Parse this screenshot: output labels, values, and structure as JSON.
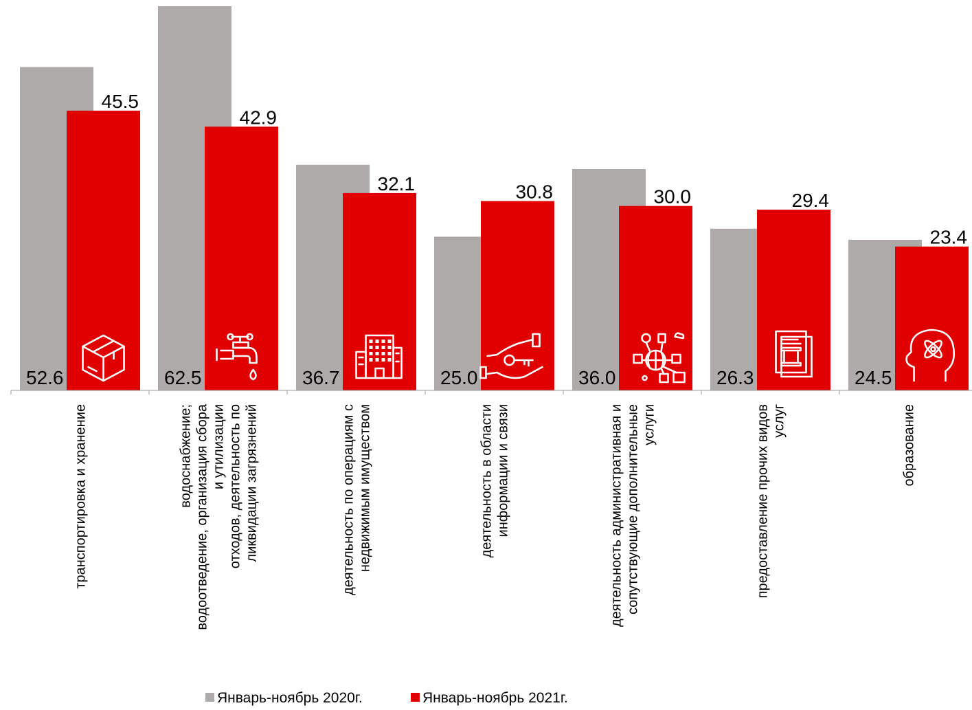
{
  "chart_data": {
    "type": "bar",
    "categories": [
      "транспортировка и хранение",
      "водоснабжение; водоотведение, организация сбора и утилизации отходов, деятельность по ликвидации загрязнений",
      "деятельность по операциям с недвижимым имуществом",
      "деятельность в области информации и связи",
      "деятельность административная и сопутствующие дополнительные услуги",
      "предоставление прочих видов услуг",
      "образование"
    ],
    "category_lines": [
      [
        "транспортировка и хранение"
      ],
      [
        "водоснабжение;",
        "водоотведение, организация сбора",
        "и утилизации",
        "отходов, деятельность по",
        "ликвидации загрязнений"
      ],
      [
        "деятельность по операциям с",
        "недвижимым имуществом"
      ],
      [
        "деятельность в области",
        "информации и связи"
      ],
      [
        "деятельность административная и",
        "сопутствующие дополнительные",
        "услуги"
      ],
      [
        "предоставление прочих видов",
        "услуг"
      ],
      [
        "образование"
      ]
    ],
    "series": [
      {
        "name": "Январь-ноябрь 2020г.",
        "color": "#aeaaaa",
        "values": [
          52.6,
          62.5,
          36.7,
          25.0,
          36.0,
          26.3,
          24.5
        ],
        "labels": [
          "52.6",
          "62.5",
          "36.7",
          "25.0",
          "36.0",
          "26.3",
          "24.5"
        ]
      },
      {
        "name": "Январь-ноябрь 2021г.",
        "color": "#e00000",
        "values": [
          45.5,
          42.9,
          32.1,
          30.8,
          30.0,
          29.4,
          23.4
        ],
        "labels": [
          "45.5",
          "42.9",
          "32.1",
          "30.8",
          "30.0",
          "29.4",
          "23.4"
        ]
      }
    ],
    "icons": [
      "box-icon",
      "water-tap-icon",
      "building-icon",
      "key-hand-icon",
      "network-globe-icon",
      "document-icon",
      "head-atom-icon"
    ],
    "ylim": [
      0,
      62.5
    ],
    "legend": "bottom",
    "grid": false
  }
}
